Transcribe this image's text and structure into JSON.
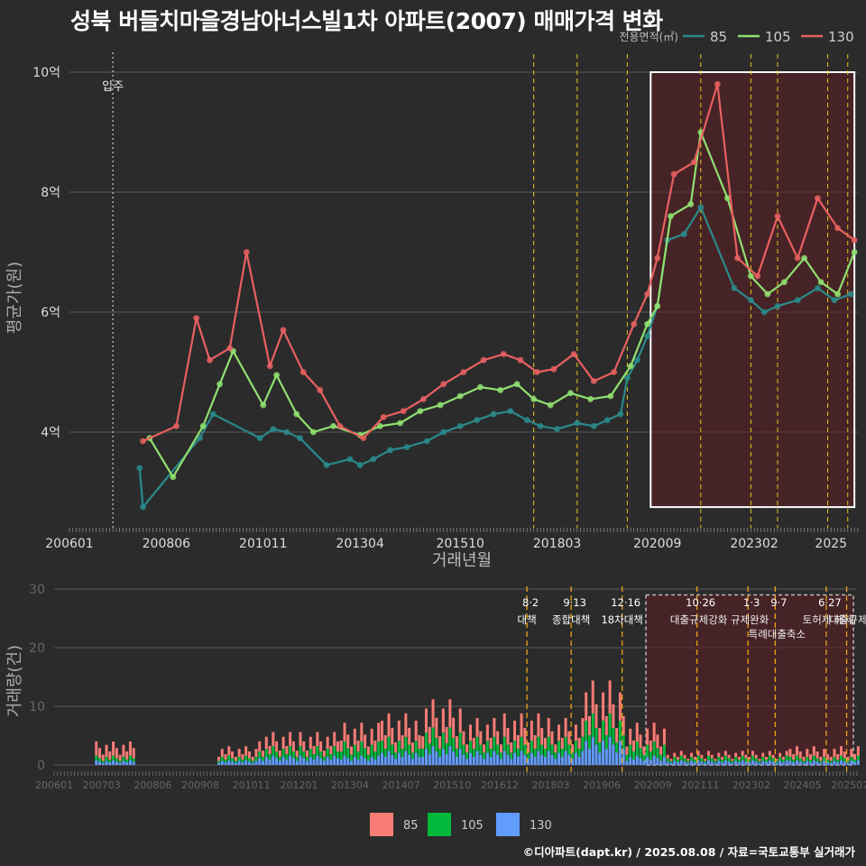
{
  "title": "성북 버들치마을경남아너스빌1차 아파트(2007) 매매가격 변화",
  "credit": "©디아파트(dapt.kr) / 2025.08.08 / 자료=국토교통부 실거래가",
  "colors": {
    "s85": "#2a8a8a",
    "s105": "#90e070",
    "s130": "#e86060",
    "bar85": "#f87c76",
    "bar105": "#00b83b",
    "bar130": "#619cff",
    "vline": "#e6c619",
    "box": "#ffffff",
    "bg": "#2b2b2b"
  },
  "chart_data": [
    {
      "type": "line",
      "xlabel": "거래년월",
      "ylabel": "평균가(원)",
      "y_unit": "억",
      "ylim": [
        2.55,
        10.4
      ],
      "yticks": [
        {
          "v": 4,
          "label": "4억"
        },
        {
          "v": 6,
          "label": "6억"
        },
        {
          "v": 8,
          "label": "8억"
        },
        {
          "v": 10,
          "label": "10억"
        }
      ],
      "xticks": [
        "200601",
        "200806",
        "201011",
        "201304",
        "201510",
        "201803",
        "202009",
        "202302",
        "2025"
      ],
      "legend": {
        "title": "전용면적(㎡)",
        "items": [
          "85",
          "105",
          "130"
        ],
        "placement": "top-right"
      },
      "annotations": [
        {
          "x": "2007-02",
          "label": "입주"
        }
      ],
      "vlines": [
        "2017-08",
        "2018-09",
        "2019-12",
        "2021-10",
        "2023-01",
        "2023-09",
        "2024-12",
        "2025-06"
      ],
      "highlight_box": {
        "from": "2020-07",
        "to": "2025-08",
        "ymin": 2.75,
        "ymax": 10.0
      },
      "series": [
        {
          "name": "85",
          "values": [
            [
              "2007-10",
              3.4
            ],
            [
              "2007-11",
              2.75
            ],
            [
              "2009-04",
              3.9
            ],
            [
              "2009-08",
              4.3
            ],
            [
              "2010-10",
              3.9
            ],
            [
              "2011-02",
              4.05
            ],
            [
              "2011-06",
              4.0
            ],
            [
              "2011-10",
              3.9
            ],
            [
              "2012-06",
              3.45
            ],
            [
              "2013-01",
              3.55
            ],
            [
              "2013-04",
              3.45
            ],
            [
              "2013-08",
              3.55
            ],
            [
              "2014-01",
              3.7
            ],
            [
              "2014-06",
              3.75
            ],
            [
              "2014-12",
              3.85
            ],
            [
              "2015-05",
              4.0
            ],
            [
              "2015-10",
              4.1
            ],
            [
              "2016-03",
              4.2
            ],
            [
              "2016-08",
              4.3
            ],
            [
              "2017-01",
              4.35
            ],
            [
              "2017-06",
              4.2
            ],
            [
              "2017-10",
              4.1
            ],
            [
              "2018-03",
              4.05
            ],
            [
              "2018-09",
              4.15
            ],
            [
              "2019-02",
              4.1
            ],
            [
              "2019-06",
              4.2
            ],
            [
              "2019-10",
              4.3
            ],
            [
              "2019-12",
              4.9
            ],
            [
              "2020-03",
              5.2
            ],
            [
              "2020-06",
              5.6
            ],
            [
              "2020-09",
              6.1
            ],
            [
              "2020-12",
              7.2
            ],
            [
              "2021-05",
              7.3
            ],
            [
              "2021-10",
              7.75
            ],
            [
              "2022-08",
              6.4
            ],
            [
              "2023-01",
              6.2
            ],
            [
              "2023-05",
              6.0
            ],
            [
              "2023-09",
              6.1
            ],
            [
              "2024-03",
              6.2
            ],
            [
              "2024-09",
              6.4
            ],
            [
              "2025-02",
              6.2
            ],
            [
              "2025-07",
              6.3
            ]
          ]
        },
        {
          "name": "105",
          "values": [
            [
              "2008-01",
              3.9
            ],
            [
              "2008-08",
              3.25
            ],
            [
              "2009-05",
              4.1
            ],
            [
              "2009-10",
              4.8
            ],
            [
              "2010-02",
              5.35
            ],
            [
              "2010-11",
              4.45
            ],
            [
              "2011-03",
              4.95
            ],
            [
              "2011-09",
              4.3
            ],
            [
              "2012-02",
              4.0
            ],
            [
              "2012-08",
              4.1
            ],
            [
              "2013-04",
              3.95
            ],
            [
              "2013-10",
              4.1
            ],
            [
              "2014-04",
              4.15
            ],
            [
              "2014-10",
              4.35
            ],
            [
              "2015-04",
              4.45
            ],
            [
              "2015-10",
              4.6
            ],
            [
              "2016-04",
              4.75
            ],
            [
              "2016-10",
              4.7
            ],
            [
              "2017-03",
              4.8
            ],
            [
              "2017-08",
              4.55
            ],
            [
              "2018-01",
              4.45
            ],
            [
              "2018-07",
              4.65
            ],
            [
              "2019-01",
              4.55
            ],
            [
              "2019-07",
              4.6
            ],
            [
              "2020-01",
              5.1
            ],
            [
              "2020-06",
              5.8
            ],
            [
              "2020-09",
              6.1
            ],
            [
              "2021-01",
              7.6
            ],
            [
              "2021-07",
              7.8
            ],
            [
              "2021-10",
              9.0
            ],
            [
              "2022-06",
              7.9
            ],
            [
              "2023-01",
              6.6
            ],
            [
              "2023-06",
              6.3
            ],
            [
              "2023-11",
              6.5
            ],
            [
              "2024-05",
              6.9
            ],
            [
              "2024-10",
              6.5
            ],
            [
              "2025-03",
              6.3
            ],
            [
              "2025-08",
              7.0
            ]
          ]
        },
        {
          "name": "130",
          "values": [
            [
              "2007-11",
              3.85
            ],
            [
              "2008-09",
              4.1
            ],
            [
              "2009-03",
              5.9
            ],
            [
              "2009-07",
              5.2
            ],
            [
              "2010-01",
              5.4
            ],
            [
              "2010-06",
              7.0
            ],
            [
              "2011-01",
              5.1
            ],
            [
              "2011-05",
              5.7
            ],
            [
              "2011-11",
              5.0
            ],
            [
              "2012-04",
              4.7
            ],
            [
              "2012-10",
              4.1
            ],
            [
              "2013-05",
              3.9
            ],
            [
              "2013-11",
              4.25
            ],
            [
              "2014-05",
              4.35
            ],
            [
              "2014-11",
              4.55
            ],
            [
              "2015-05",
              4.8
            ],
            [
              "2015-11",
              5.0
            ],
            [
              "2016-05",
              5.2
            ],
            [
              "2016-11",
              5.3
            ],
            [
              "2017-04",
              5.2
            ],
            [
              "2017-09",
              5.0
            ],
            [
              "2018-02",
              5.05
            ],
            [
              "2018-08",
              5.3
            ],
            [
              "2019-02",
              4.85
            ],
            [
              "2019-08",
              5.0
            ],
            [
              "2020-02",
              5.8
            ],
            [
              "2020-06",
              6.3
            ],
            [
              "2020-09",
              6.9
            ],
            [
              "2021-02",
              8.3
            ],
            [
              "2021-08",
              8.5
            ],
            [
              "2022-03",
              9.8
            ],
            [
              "2022-09",
              6.9
            ],
            [
              "2023-03",
              6.6
            ],
            [
              "2023-09",
              7.6
            ],
            [
              "2024-03",
              6.9
            ],
            [
              "2024-09",
              7.9
            ],
            [
              "2025-03",
              7.4
            ],
            [
              "2025-08",
              7.2
            ]
          ]
        }
      ]
    },
    {
      "type": "bar",
      "stacked": true,
      "ylabel": "거래량(건)",
      "ylim": [
        0,
        30
      ],
      "yticks": [
        0,
        10,
        20,
        30
      ],
      "xticks": [
        "200601",
        "200703",
        "200806",
        "200908",
        "201011",
        "201201",
        "201304",
        "201407",
        "201510",
        "201612",
        "201803",
        "201906",
        "202009",
        "202111",
        "202302",
        "202405",
        "202507"
      ],
      "legend": {
        "items": [
          "85",
          "105",
          "130"
        ],
        "placement": "bottom"
      },
      "highlight_box": {
        "from": "2020-07",
        "to": "2025-08",
        "ymax": 29
      },
      "policy_annotations": [
        {
          "x": "2017-08",
          "date": "8·2",
          "label": "대책"
        },
        {
          "x": "2018-09",
          "date": "9·13",
          "label": "종합대책"
        },
        {
          "x": "2019-12",
          "date": "12·16",
          "label": "18차대책"
        },
        {
          "x": "2021-10",
          "date": "10·26",
          "label": "대출규제강화"
        },
        {
          "x": "2023-01",
          "date": "1·3",
          "label": "규제완화"
        },
        {
          "x": "2023-09",
          "date": "9·7",
          "label": "특례대출축소"
        },
        {
          "x": "2024-12",
          "date": "6·27",
          "label": "토허제 해제"
        },
        {
          "x": "2025-06",
          "date": "",
          "label": "대출규제"
        }
      ],
      "series": [
        {
          "name": "85",
          "values": [
            [
              2007,
              3
            ],
            [
              2010,
              2
            ],
            [
              2011,
              3
            ],
            [
              2012,
              3
            ],
            [
              2013,
              4
            ],
            [
              2014,
              5
            ],
            [
              2015,
              6
            ],
            [
              2016,
              4
            ],
            [
              2017,
              5
            ],
            [
              2018,
              4
            ],
            [
              2019,
              7
            ],
            [
              2020,
              4
            ],
            [
              2021,
              1
            ],
            [
              2022,
              1
            ],
            [
              2023,
              1
            ],
            [
              2024,
              2
            ],
            [
              2025,
              2
            ]
          ]
        },
        {
          "name": "105",
          "values": [
            [
              2007,
              1
            ],
            [
              2010,
              1
            ],
            [
              2011,
              2
            ],
            [
              2012,
              2
            ],
            [
              2013,
              3
            ],
            [
              2014,
              3
            ],
            [
              2015,
              4
            ],
            [
              2016,
              3
            ],
            [
              2017,
              3
            ],
            [
              2018,
              3
            ],
            [
              2019,
              5
            ],
            [
              2020,
              3
            ],
            [
              2021,
              1
            ],
            [
              2022,
              1
            ],
            [
              2023,
              1
            ],
            [
              2024,
              1
            ],
            [
              2025,
              1
            ]
          ]
        },
        {
          "name": "130",
          "values": [
            [
              2007,
              1
            ],
            [
              2010,
              1
            ],
            [
              2011,
              2
            ],
            [
              2012,
              2
            ],
            [
              2013,
              2
            ],
            [
              2014,
              3
            ],
            [
              2015,
              4
            ],
            [
              2016,
              3
            ],
            [
              2017,
              3
            ],
            [
              2018,
              3
            ],
            [
              2019,
              6
            ],
            [
              2020,
              2
            ],
            [
              2021,
              1
            ],
            [
              2022,
              1
            ],
            [
              2023,
              1
            ],
            [
              2024,
              1
            ],
            [
              2025,
              1
            ]
          ]
        }
      ]
    }
  ]
}
